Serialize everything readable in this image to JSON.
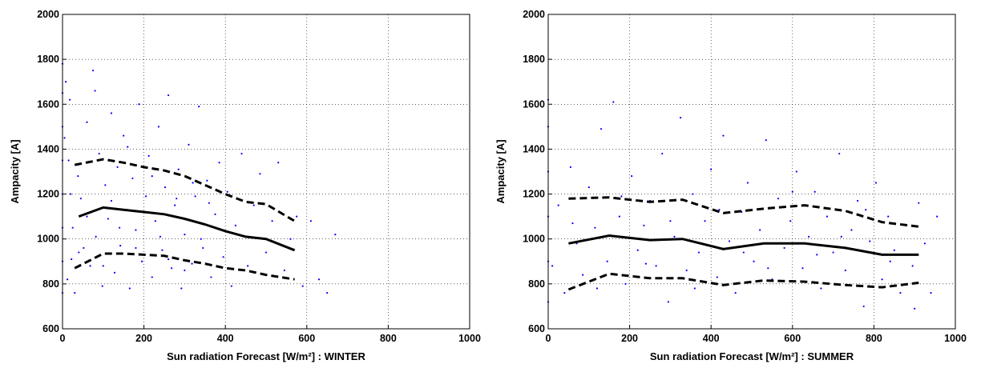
{
  "chart_data": [
    {
      "type": "scatter",
      "xlabel": "Sun radiation Forecast [W/m²] : WINTER",
      "ylabel": "Ampacity [A]",
      "xlim": [
        0,
        1000
      ],
      "ylim": [
        600,
        2000
      ],
      "xticks": [
        0,
        200,
        400,
        600,
        800,
        1000
      ],
      "yticks": [
        600,
        800,
        1000,
        1200,
        1400,
        1600,
        1800,
        2000
      ],
      "grid": true,
      "series": [
        {
          "type": "scatter",
          "color": "#0000ff",
          "x": [
            0,
            0,
            0,
            0,
            0,
            0,
            0,
            0,
            5,
            12,
            18,
            25,
            30,
            38,
            45,
            52,
            60,
            68,
            75,
            82,
            90,
            98,
            105,
            112,
            120,
            128,
            135,
            142,
            150,
            158,
            165,
            172,
            180,
            188,
            195,
            205,
            212,
            220,
            228,
            236,
            245,
            252,
            260,
            268,
            276,
            285,
            292,
            300,
            310,
            318,
            326,
            335,
            345,
            355,
            365,
            375,
            385,
            395,
            405,
            415,
            425,
            440,
            455,
            470,
            485,
            500,
            515,
            530,
            545,
            560,
            575,
            590,
            610,
            630,
            650,
            670,
            20,
            40,
            60,
            80,
            100,
            120,
            140,
            160,
            180,
            200,
            220,
            240,
            260,
            280,
            300,
            320,
            340,
            360,
            8,
            15,
            22
          ],
          "values": [
            760,
            900,
            1050,
            1200,
            1350,
            1500,
            1650,
            1780,
            1450,
            820,
            1620,
            1050,
            760,
            1280,
            1180,
            960,
            1520,
            880,
            1750,
            1010,
            1380,
            790,
            1240,
            1090,
            1560,
            850,
            1320,
            970,
            1460,
            1130,
            780,
            1270,
            1040,
            1600,
            900,
            1190,
            1370,
            830,
            1080,
            1500,
            950,
            1230,
            1640,
            870,
            1150,
            1310,
            780,
            1020,
            1420,
            890,
            1190,
            1590,
            960,
            1260,
            830,
            1110,
            1340,
            920,
            1210,
            790,
            1060,
            1380,
            880,
            1150,
            1290,
            940,
            1080,
            1340,
            860,
            1000,
            1100,
            790,
            1080,
            820,
            760,
            1020,
            1200,
            940,
            1100,
            1660,
            880,
            1170,
            1050,
            1410,
            960,
            1120,
            1280,
            1010,
            910,
            1180,
            860,
            1250,
            1000,
            1160,
            1700,
            1350,
            910
          ]
        },
        {
          "type": "line",
          "style": "dashed",
          "color": "#000000",
          "x": [
            30,
            100,
            150,
            200,
            250,
            300,
            350,
            400,
            450,
            500,
            570
          ],
          "values": [
            1330,
            1355,
            1340,
            1320,
            1305,
            1280,
            1240,
            1200,
            1165,
            1155,
            1080
          ]
        },
        {
          "type": "line",
          "style": "solid",
          "color": "#000000",
          "x": [
            40,
            100,
            150,
            200,
            250,
            300,
            350,
            400,
            450,
            500,
            570
          ],
          "values": [
            1100,
            1140,
            1130,
            1120,
            1110,
            1090,
            1065,
            1035,
            1010,
            1000,
            950
          ]
        },
        {
          "type": "line",
          "style": "dashed",
          "color": "#000000",
          "x": [
            30,
            100,
            150,
            200,
            250,
            300,
            350,
            400,
            450,
            500,
            570
          ],
          "values": [
            870,
            935,
            935,
            930,
            925,
            905,
            890,
            870,
            860,
            840,
            820
          ]
        }
      ]
    },
    {
      "type": "scatter",
      "xlabel": "Sun radiation Forecast [W/m²] : SUMMER",
      "ylabel": "Ampacity [A]",
      "xlim": [
        0,
        1000
      ],
      "ylim": [
        600,
        2000
      ],
      "xticks": [
        0,
        200,
        400,
        600,
        800,
        1000
      ],
      "yticks": [
        600,
        800,
        1000,
        1200,
        1400,
        1600,
        1800,
        2000
      ],
      "grid": true,
      "series": [
        {
          "type": "scatter",
          "color": "#0000ff",
          "x": [
            0,
            0,
            0,
            0,
            0,
            0,
            10,
            25,
            40,
            55,
            70,
            85,
            100,
            115,
            130,
            145,
            160,
            175,
            190,
            205,
            220,
            235,
            250,
            265,
            280,
            295,
            310,
            325,
            340,
            355,
            370,
            385,
            400,
            415,
            430,
            445,
            460,
            475,
            490,
            505,
            520,
            535,
            550,
            565,
            580,
            595,
            610,
            625,
            640,
            655,
            670,
            685,
            700,
            715,
            730,
            745,
            760,
            775,
            790,
            805,
            820,
            835,
            850,
            865,
            880,
            895,
            910,
            925,
            940,
            955,
            60,
            120,
            180,
            240,
            300,
            360,
            420,
            480,
            540,
            600,
            660,
            720,
            780,
            840,
            900
          ],
          "values": [
            720,
            900,
            1100,
            1300,
            1500,
            1620,
            880,
            1150,
            760,
            1320,
            980,
            840,
            1230,
            1050,
            1490,
            900,
            1610,
            1100,
            800,
            1280,
            950,
            1060,
            1170,
            880,
            1380,
            720,
            1010,
            1540,
            860,
            1200,
            940,
            1080,
            1310,
            830,
            1460,
            990,
            760,
            1120,
            1250,
            900,
            1040,
            1440,
            820,
            1180,
            960,
            1080,
            1300,
            870,
            1010,
            1210,
            780,
            1100,
            940,
            1380,
            860,
            1040,
            1170,
            700,
            990,
            1250,
            820,
            1100,
            950,
            760,
            1060,
            880,
            1160,
            980,
            760,
            1100,
            1070,
            780,
            1190,
            890,
            1080,
            780,
            1130,
            940,
            870,
            1210,
            930,
            1010,
            1130,
            900,
            690
          ]
        },
        {
          "type": "line",
          "style": "dashed",
          "color": "#000000",
          "x": [
            50,
            150,
            250,
            330,
            430,
            530,
            630,
            730,
            820,
            910
          ],
          "values": [
            1180,
            1185,
            1165,
            1175,
            1115,
            1135,
            1150,
            1125,
            1075,
            1055
          ]
        },
        {
          "type": "line",
          "style": "solid",
          "color": "#000000",
          "x": [
            50,
            150,
            250,
            330,
            430,
            530,
            630,
            730,
            820,
            910
          ],
          "values": [
            980,
            1015,
            995,
            1000,
            955,
            980,
            980,
            960,
            930,
            930
          ]
        },
        {
          "type": "line",
          "style": "dashed",
          "color": "#000000",
          "x": [
            50,
            150,
            250,
            330,
            430,
            530,
            630,
            730,
            820,
            910
          ],
          "values": [
            775,
            845,
            825,
            825,
            795,
            815,
            810,
            795,
            785,
            805
          ]
        }
      ]
    }
  ]
}
